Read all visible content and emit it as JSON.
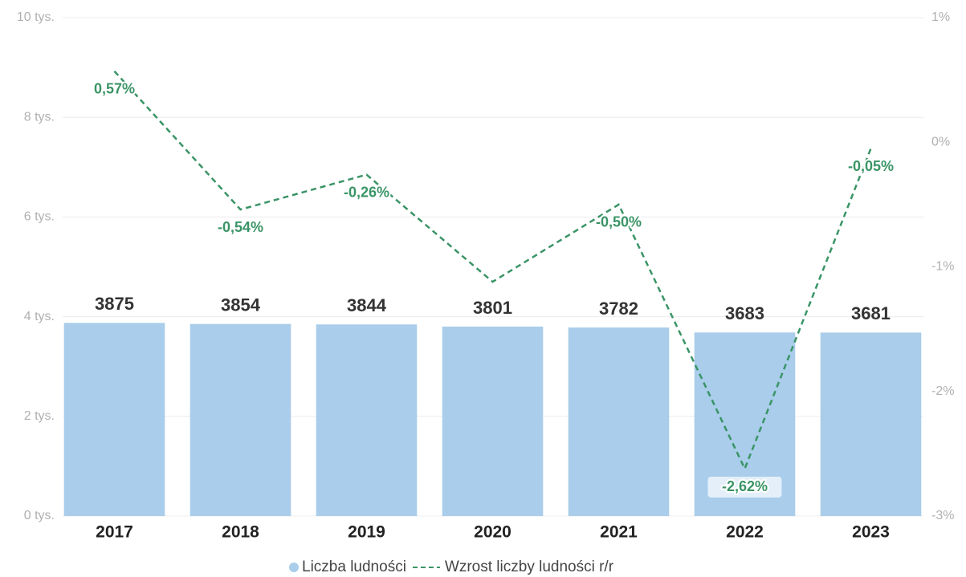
{
  "chart_data": {
    "type": "bar",
    "categories": [
      "2017",
      "2018",
      "2019",
      "2020",
      "2021",
      "2022",
      "2023"
    ],
    "series": [
      {
        "name": "Liczba ludności",
        "type": "bar",
        "color": "#a9cdea",
        "values": [
          3875,
          3854,
          3844,
          3801,
          3782,
          3683,
          3681
        ]
      },
      {
        "name": "Wzrost liczby ludności r/r",
        "type": "line",
        "axis": "y2",
        "color": "#3a9466",
        "dashed": true,
        "values": [
          0.57,
          -0.54,
          -0.26,
          -1.12,
          -0.5,
          -2.62,
          -0.05
        ],
        "value_labels": [
          "0,57%",
          "-0,54%",
          "-0,26%",
          null,
          "-0,50%",
          "-2,62%",
          "-0,05%"
        ]
      }
    ],
    "ylim": [
      0,
      10000
    ],
    "yticks": [
      {
        "value": 0,
        "label": "0 tys."
      },
      {
        "value": 2000,
        "label": "2 tys."
      },
      {
        "value": 4000,
        "label": "4 tys."
      },
      {
        "value": 6000,
        "label": "6 tys."
      },
      {
        "value": 8000,
        "label": "8 tys."
      },
      {
        "value": 10000,
        "label": "10 tys."
      }
    ],
    "y2lim": [
      -3,
      1
    ],
    "y2ticks": [
      {
        "value": -3,
        "label": "-3%"
      },
      {
        "value": -2,
        "label": "-2%"
      },
      {
        "value": -1,
        "label": "-1%"
      },
      {
        "value": 0,
        "label": "0%"
      },
      {
        "value": 1,
        "label": "1%"
      }
    ],
    "grid": true,
    "legend": "bottom"
  }
}
